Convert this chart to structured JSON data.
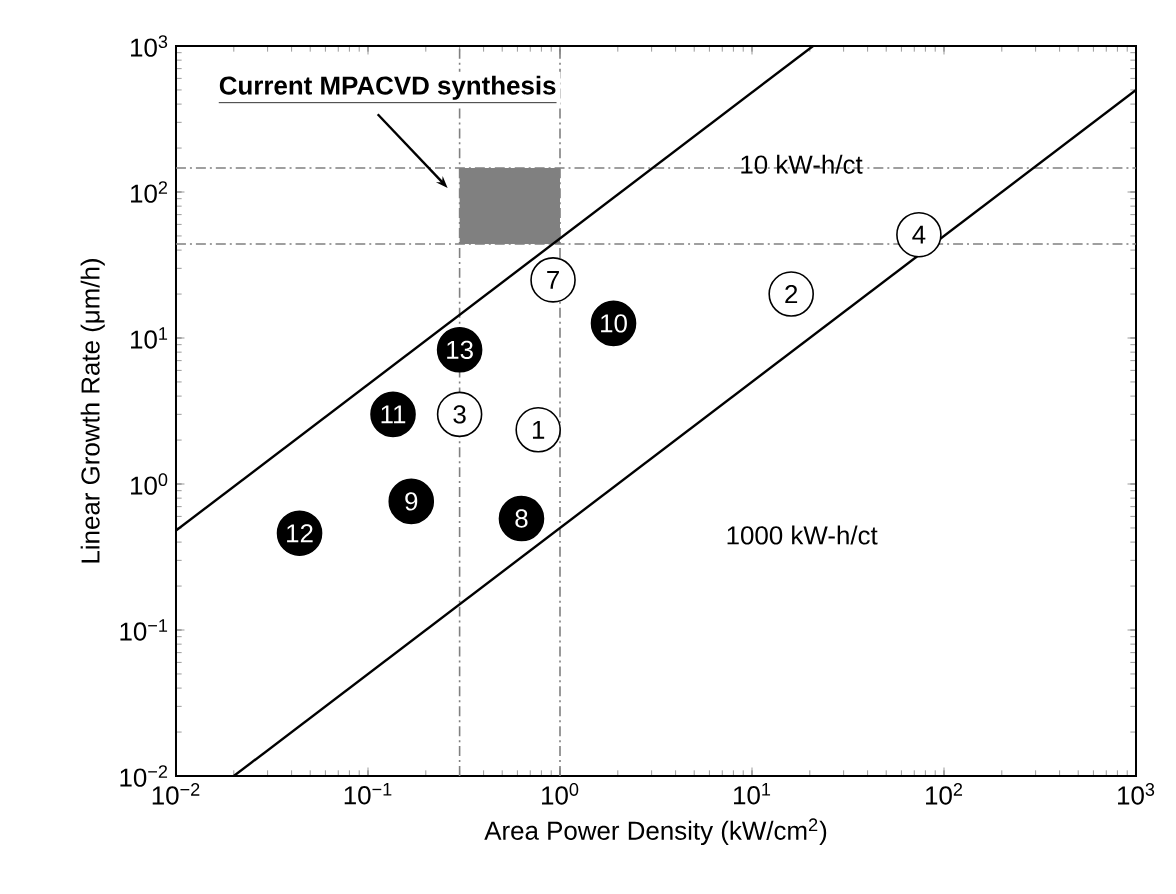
{
  "chart_data": {
    "type": "scatter",
    "xlabel": "Area Power Density (kW/cm$^{2}$)",
    "ylabel": "Linear Growth Rate (μm/h)",
    "xlim": [
      0.01,
      1000
    ],
    "ylim": [
      0.01,
      1000
    ],
    "log": "xy",
    "xticks": [
      {
        "value": 0.01,
        "label": "10$^{−2}$"
      },
      {
        "value": 0.1,
        "label": "10$^{−1}$"
      },
      {
        "value": 1,
        "label": "10$^{0}$"
      },
      {
        "value": 10,
        "label": "10$^{1}$"
      },
      {
        "value": 100,
        "label": "10$^{2}$"
      },
      {
        "value": 1000,
        "label": "10$^{3}$"
      }
    ],
    "yticks": [
      {
        "value": 0.01,
        "label": "10$^{−2}$"
      },
      {
        "value": 0.1,
        "label": "10$^{−1}$"
      },
      {
        "value": 1,
        "label": "10$^{0}$"
      },
      {
        "value": 10,
        "label": "10$^{1}$"
      },
      {
        "value": 100,
        "label": "10$^{2}$"
      },
      {
        "value": 1000,
        "label": "10$^{3}$"
      }
    ],
    "grid": false,
    "series": [
      {
        "type": "line",
        "marker": "none",
        "color": "#000000",
        "x": [
          0.01,
          20.8
        ],
        "values": [
          0.48,
          1000
        ]
      },
      {
        "type": "line",
        "marker": "none",
        "color": "#000000",
        "x": [
          0.02,
          1000
        ],
        "values": [
          0.01,
          500
        ]
      },
      {
        "marker": "circle",
        "color": "#ffffff",
        "x": [
          0.77,
          16,
          0.3,
          74,
          0.92
        ],
        "values": [
          2.35,
          20,
          3.0,
          51,
          25
        ]
      },
      {
        "marker": "circle",
        "color": "#000000",
        "x": [
          0.63,
          0.168,
          1.9,
          0.135,
          0.044,
          0.3
        ],
        "values": [
          0.58,
          0.76,
          12.6,
          3.0,
          0.46,
          8.3
        ]
      }
    ],
    "bands": [
      {
        "axis": "x",
        "from": 0.3,
        "to": 1.0,
        "color": "#808080"
      }
    ],
    "ref_lines": [
      {
        "axis": "x",
        "value": 0.3,
        "color": "#808080",
        "line_style": "dashed"
      },
      {
        "axis": "x",
        "value": 1.0,
        "color": "#808080",
        "line_style": "dashed"
      },
      {
        "axis": "y",
        "value": 146,
        "color": "#808080",
        "line_style": "dashed"
      },
      {
        "axis": "y",
        "value": 44,
        "color": "#808080",
        "line_style": "dashed"
      }
    ],
    "annotations": [
      "Current MPACVD synthesis",
      {
        "text": "10 kW-h/ct",
        "x": 18,
        "y": 155
      },
      "1000 kW-h/ct",
      {
        "text": "1",
        "x": 0.77,
        "y": 2.35
      },
      {
        "text": "2",
        "x": 16,
        "y": 20
      },
      {
        "text": "3",
        "x": 0.3,
        "y": 3.0
      },
      {
        "text": "4",
        "x": 74,
        "y": 51
      },
      {
        "text": "7",
        "x": 0.92,
        "y": 25
      },
      {
        "text": "8",
        "x": 0.63,
        "y": 0.58
      },
      {
        "text": "9",
        "x": 0.168,
        "y": 0.76
      },
      {
        "text": "10",
        "x": 1.9,
        "y": 12.6
      },
      {
        "text": "11",
        "x": 0.135,
        "y": 3.0
      },
      {
        "text": "12",
        "x": 0.044,
        "y": 0.46
      },
      {
        "text": "13",
        "x": 0.3,
        "y": 8.3
      }
    ]
  }
}
